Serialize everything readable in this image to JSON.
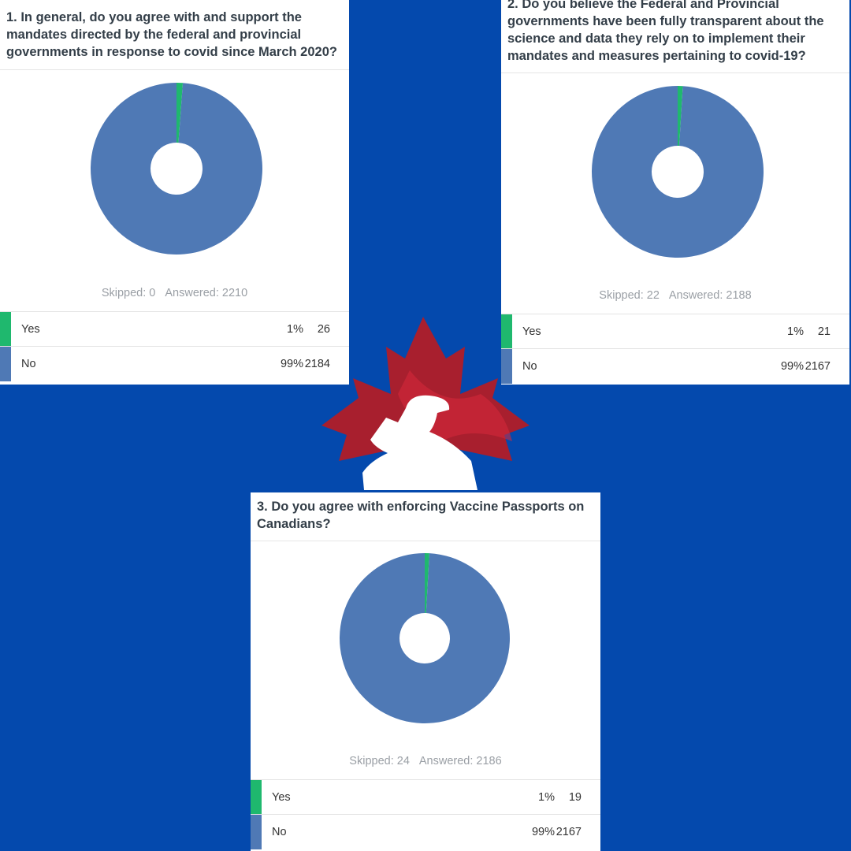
{
  "chart_data": [
    {
      "type": "pie",
      "title": "1. In general, do you agree with and support the mandates directed by the federal and provincial governments in response to covid since March 2020?",
      "summary": [
        "Skipped: 0",
        "Answered: 2210"
      ],
      "categories": [
        "Yes",
        "No"
      ],
      "values": [
        26,
        2184
      ],
      "percent_labels": [
        "1%",
        "99%"
      ],
      "colors": [
        "#1fb86e",
        "#4f79b5"
      ]
    },
    {
      "type": "pie",
      "title": "2. Do you believe the Federal and Provincial governments have been fully transparent about the science and data they rely on to implement their mandates and measures pertaining to covid-19?",
      "summary": [
        "Skipped: 22",
        "Answered: 2188"
      ],
      "categories": [
        "Yes",
        "No"
      ],
      "values": [
        21,
        2167
      ],
      "percent_labels": [
        "1%",
        "99%"
      ],
      "colors": [
        "#1fb86e",
        "#4f79b5"
      ]
    },
    {
      "type": "pie",
      "title": "3. Do you agree with enforcing Vaccine Passports on Canadians?",
      "summary": [
        "Skipped: 24",
        "Answered: 2186"
      ],
      "categories": [
        "Yes",
        "No"
      ],
      "values": [
        19,
        2167
      ],
      "percent_labels": [
        "1%",
        "99%"
      ],
      "colors": [
        "#1fb86e",
        "#4f79b5"
      ]
    }
  ]
}
